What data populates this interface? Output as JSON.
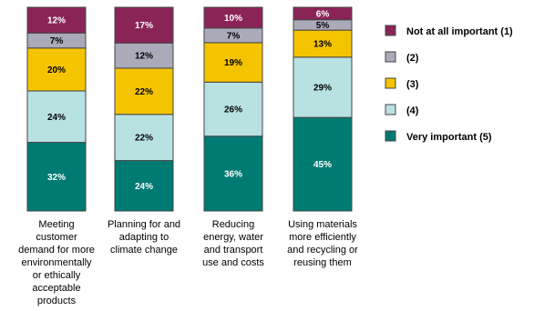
{
  "chart_data": {
    "type": "bar",
    "stacked": true,
    "orientation": "vertical",
    "percent": true,
    "categories": [
      [
        "Meeting",
        "customer",
        "demand for more",
        "environmentally",
        "or ethically",
        "acceptable",
        "products"
      ],
      [
        "Planning for and",
        "adapting to",
        "climate change"
      ],
      [
        "Reducing",
        "energy, water",
        "and transport",
        "use and costs"
      ],
      [
        "Using materials",
        "more efficiently",
        "and recycling or",
        "reusing them"
      ]
    ],
    "series": [
      {
        "name": "Very important (5)",
        "color": "#007B74",
        "values": [
          32,
          24,
          36,
          45
        ]
      },
      {
        "name": "(4)",
        "color": "#B8E2E1",
        "values": [
          24,
          22,
          26,
          29
        ]
      },
      {
        "name": "(3)",
        "color": "#F5C400",
        "values": [
          20,
          22,
          19,
          13
        ]
      },
      {
        "name": "(2)",
        "color": "#AAAAB8",
        "values": [
          7,
          12,
          7,
          5
        ]
      },
      {
        "name": "Not at all important (1)",
        "color": "#8B2456",
        "values": [
          12,
          17,
          10,
          6
        ]
      }
    ],
    "legend": {
      "placement": "right",
      "order": [
        "Not at all important (1)",
        "(2)",
        "(3)",
        "(4)",
        "Very important (5)"
      ]
    },
    "ylim": [
      0,
      100
    ],
    "grid": false
  }
}
